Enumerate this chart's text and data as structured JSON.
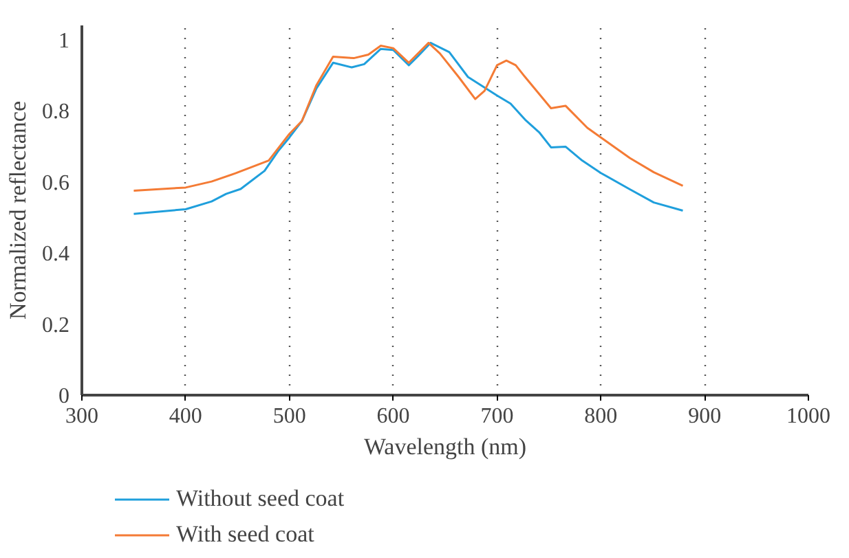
{
  "chart_data": {
    "type": "line",
    "xlabel": "Wavelength (nm)",
    "ylabel": "Normalized reflectance",
    "xlim": [
      300,
      1000
    ],
    "xticks": [
      300,
      400,
      500,
      600,
      700,
      800,
      900,
      1000
    ],
    "ylim": [
      0,
      1.04
    ],
    "yticks": [
      0,
      0.2,
      0.4,
      0.6,
      0.8,
      1
    ],
    "grid": "x",
    "legend": "bottom",
    "line_style": "solid",
    "series": [
      {
        "name": "Without seed coat",
        "color": "#1f9fdc",
        "x": [
          350,
          400,
          425,
          439,
          453,
          476,
          489,
          500,
          512,
          526,
          542,
          560,
          572,
          588,
          600,
          615,
          624,
          636,
          654,
          672,
          700,
          713,
          727,
          741,
          752,
          766,
          782,
          800,
          828,
          851,
          879
        ],
        "values": [
          0.51,
          0.523,
          0.545,
          0.566,
          0.58,
          0.631,
          0.686,
          0.725,
          0.771,
          0.863,
          0.935,
          0.922,
          0.931,
          0.974,
          0.971,
          0.928,
          0.954,
          0.991,
          0.965,
          0.895,
          0.843,
          0.82,
          0.775,
          0.738,
          0.697,
          0.699,
          0.66,
          0.625,
          0.579,
          0.542,
          0.519
        ]
      },
      {
        "name": "With seed coat",
        "color": "#f47b35",
        "x": [
          350,
          400,
          425,
          448,
          480,
          500,
          512,
          526,
          542,
          562,
          576,
          588,
          600,
          615,
          634,
          645,
          663,
          679,
          688,
          700,
          709,
          718,
          727,
          752,
          766,
          787,
          800,
          828,
          851,
          879
        ],
        "values": [
          0.575,
          0.584,
          0.601,
          0.624,
          0.66,
          0.735,
          0.771,
          0.872,
          0.952,
          0.948,
          0.958,
          0.983,
          0.976,
          0.935,
          0.991,
          0.961,
          0.895,
          0.833,
          0.856,
          0.928,
          0.941,
          0.928,
          0.895,
          0.807,
          0.814,
          0.752,
          0.725,
          0.667,
          0.627,
          0.589
        ]
      }
    ]
  }
}
